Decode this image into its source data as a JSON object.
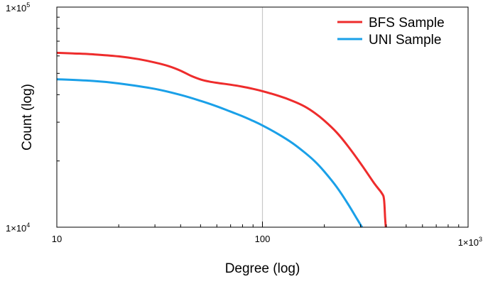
{
  "chart_data": {
    "type": "line",
    "xlabel": "Degree (log)",
    "ylabel": "Count (log)",
    "xscale": "log",
    "yscale": "log",
    "xlim": [
      10,
      1000
    ],
    "ylim": [
      10000,
      100000
    ],
    "grid": "vertical line at x=100",
    "legend_position": "top-right",
    "x_ticks": [
      {
        "value": 10,
        "label": "10"
      },
      {
        "value": 100,
        "label": "100"
      },
      {
        "value": 1000,
        "label": "1×10",
        "exp": "3"
      }
    ],
    "y_ticks": [
      {
        "value": 10000,
        "label": "1×10",
        "exp": "4"
      },
      {
        "value": 100000,
        "label": "1×10",
        "exp": "5"
      }
    ],
    "series": [
      {
        "name": "BFS Sample",
        "color": "#ee2c2c",
        "points": [
          [
            10,
            62000
          ],
          [
            12,
            61600
          ],
          [
            15,
            61000
          ],
          [
            20,
            59700
          ],
          [
            25,
            58000
          ],
          [
            30,
            56000
          ],
          [
            35,
            53900
          ],
          [
            40,
            51400
          ],
          [
            45,
            48700
          ],
          [
            50,
            46900
          ],
          [
            55,
            45900
          ],
          [
            60,
            45300
          ],
          [
            70,
            44400
          ],
          [
            80,
            43500
          ],
          [
            90,
            42500
          ],
          [
            100,
            41500
          ],
          [
            120,
            39500
          ],
          [
            140,
            37500
          ],
          [
            160,
            35400
          ],
          [
            180,
            33000
          ],
          [
            200,
            30500
          ],
          [
            230,
            26900
          ],
          [
            260,
            23400
          ],
          [
            300,
            19500
          ],
          [
            350,
            15800
          ],
          [
            380,
            14300
          ],
          [
            390,
            13400
          ],
          [
            395,
            11000
          ],
          [
            398,
            10000
          ]
        ]
      },
      {
        "name": "UNI Sample",
        "color": "#1aa0e8",
        "points": [
          [
            10,
            47000
          ],
          [
            15,
            46200
          ],
          [
            20,
            45000
          ],
          [
            30,
            42500
          ],
          [
            40,
            39900
          ],
          [
            50,
            37500
          ],
          [
            60,
            35400
          ],
          [
            70,
            33500
          ],
          [
            80,
            31900
          ],
          [
            90,
            30400
          ],
          [
            100,
            29000
          ],
          [
            120,
            26400
          ],
          [
            140,
            24100
          ],
          [
            160,
            21900
          ],
          [
            180,
            19900
          ],
          [
            200,
            17900
          ],
          [
            230,
            15200
          ],
          [
            260,
            12800
          ],
          [
            290,
            10800
          ],
          [
            305,
            10000
          ]
        ]
      }
    ]
  }
}
